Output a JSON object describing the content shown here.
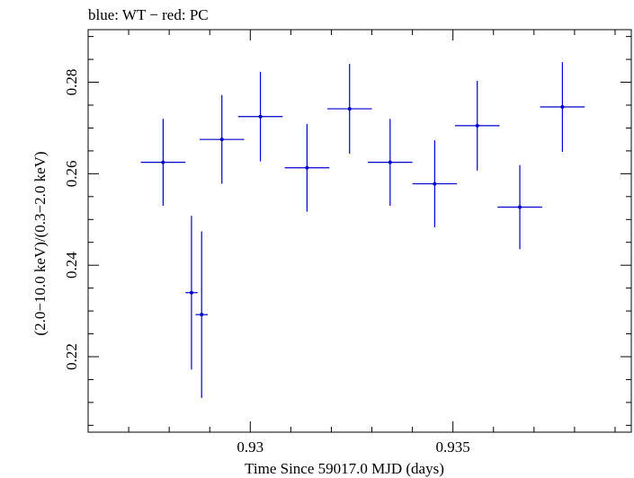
{
  "chart_data": {
    "type": "scatter",
    "title": "blue: WT − red: PC",
    "xlabel": "Time Since 59017.0 MJD (days)",
    "ylabel": "(2.0−10.0 keV)/(0.3−2.0 keV)",
    "xlim": [
      0.926,
      0.9394
    ],
    "ylim": [
      0.2035,
      0.2915
    ],
    "xticks": [
      0.93,
      0.935
    ],
    "yticks": [
      0.22,
      0.24,
      0.26,
      0.28
    ],
    "xtick_labels": [
      "0.93",
      "0.935"
    ],
    "ytick_labels": [
      "0.22",
      "0.24",
      "0.26",
      "0.28"
    ],
    "grid": false,
    "series": [
      {
        "color": "#0000cc",
        "points": [
          {
            "x": 0.92785,
            "y": 0.2625,
            "xerr": 0.00055,
            "yerr": 0.0095
          },
          {
            "x": 0.92855,
            "y": 0.234,
            "xerr": 0.00015,
            "yerr": 0.0168
          },
          {
            "x": 0.9288,
            "y": 0.2292,
            "xerr": 0.00015,
            "yerr": 0.0182
          },
          {
            "x": 0.9293,
            "y": 0.2675,
            "xerr": 0.00055,
            "yerr": 0.0097
          },
          {
            "x": 0.93025,
            "y": 0.2725,
            "xerr": 0.00055,
            "yerr": 0.0098
          },
          {
            "x": 0.9314,
            "y": 0.2613,
            "xerr": 0.00055,
            "yerr": 0.0096
          },
          {
            "x": 0.93245,
            "y": 0.2742,
            "xerr": 0.00055,
            "yerr": 0.0098
          },
          {
            "x": 0.93345,
            "y": 0.2625,
            "xerr": 0.00055,
            "yerr": 0.0095
          },
          {
            "x": 0.93455,
            "y": 0.2578,
            "xerr": 0.00055,
            "yerr": 0.0095
          },
          {
            "x": 0.9356,
            "y": 0.2705,
            "xerr": 0.00055,
            "yerr": 0.0098
          },
          {
            "x": 0.93665,
            "y": 0.2527,
            "xerr": 0.00055,
            "yerr": 0.0092
          },
          {
            "x": 0.9377,
            "y": 0.2746,
            "xerr": 0.00055,
            "yerr": 0.0098
          }
        ]
      }
    ]
  }
}
